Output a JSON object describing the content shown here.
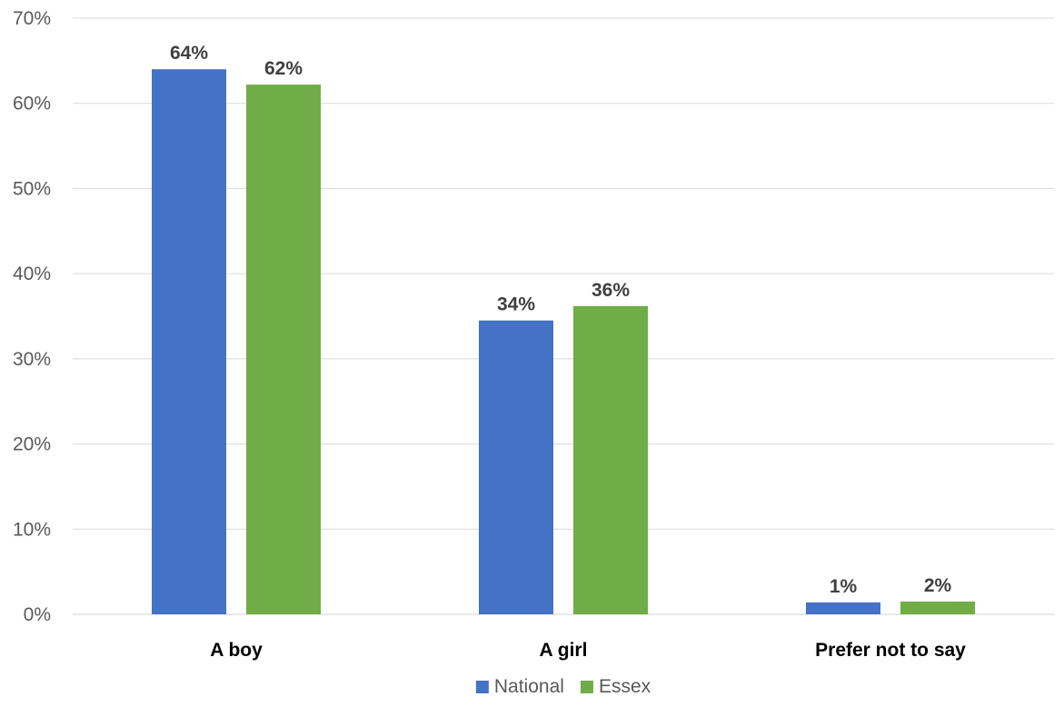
{
  "chart_data": {
    "type": "bar",
    "categories": [
      "A boy",
      "A girl",
      "Prefer not to say"
    ],
    "series": [
      {
        "name": "National",
        "values": [
          64,
          34.5,
          1.4
        ],
        "labels": [
          "64%",
          "34%",
          "1%"
        ],
        "color": "#4472c4"
      },
      {
        "name": "Essex",
        "values": [
          62.2,
          36.2,
          1.5
        ],
        "labels": [
          "62%",
          "36%",
          "2%"
        ],
        "color": "#70ad47"
      }
    ],
    "ylim": [
      0,
      70
    ],
    "yticks": [
      0,
      10,
      20,
      30,
      40,
      50,
      60,
      70
    ],
    "ytick_labels": [
      "0%",
      "10%",
      "20%",
      "30%",
      "40%",
      "50%",
      "60%",
      "70%"
    ],
    "grid": true,
    "legend_position": "bottom",
    "title": "",
    "xlabel": "",
    "ylabel": ""
  }
}
